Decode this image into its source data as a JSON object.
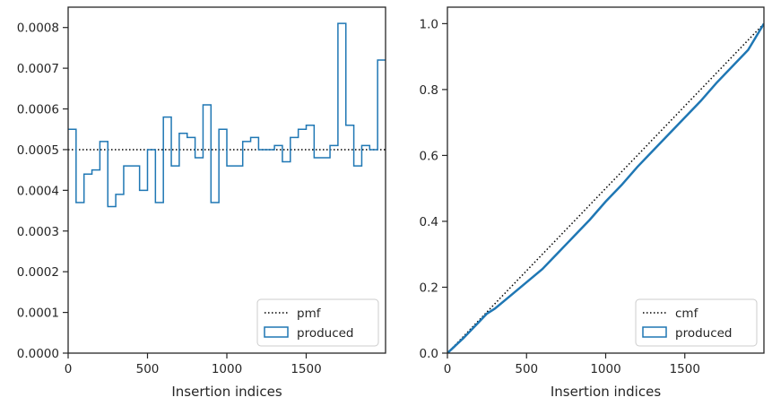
{
  "chart_data": [
    {
      "type": "step",
      "xlabel": "Insertion indices",
      "ylabel": "",
      "xlim": [
        0,
        2000
      ],
      "ylim": [
        0,
        0.00085
      ],
      "xticks": [
        0,
        500,
        1000,
        1500
      ],
      "xtick_labels": [
        "0",
        "500",
        "1000",
        "1500"
      ],
      "yticks": [
        0,
        0.0001,
        0.0002,
        0.0003,
        0.0004,
        0.0005,
        0.0006,
        0.0007,
        0.0008
      ],
      "ytick_labels": [
        "0.0000",
        "0.0001",
        "0.0002",
        "0.0003",
        "0.0004",
        "0.0005",
        "0.0006",
        "0.0007",
        "0.0008"
      ],
      "legend_position": "lower right",
      "legend": [
        "pmf",
        "produced"
      ],
      "series": [
        {
          "name": "pmf",
          "style": "dotted",
          "color": "#000000",
          "x": [
            0,
            2000
          ],
          "y": [
            0.0005,
            0.0005
          ]
        },
        {
          "name": "produced",
          "style": "step",
          "color": "#1f77b4",
          "bin_edges": [
            0,
            50,
            100,
            150,
            200,
            250,
            300,
            350,
            400,
            450,
            500,
            550,
            600,
            650,
            700,
            750,
            800,
            850,
            900,
            950,
            1000,
            1050,
            1100,
            1150,
            1200,
            1250,
            1300,
            1350,
            1400,
            1450,
            1500,
            1550,
            1600,
            1650,
            1700,
            1750,
            1800,
            1850,
            1900,
            1950,
            2000
          ],
          "values": [
            0.00055,
            0.00037,
            0.00044,
            0.00045,
            0.00052,
            0.00036,
            0.00039,
            0.00046,
            0.00046,
            0.0004,
            0.0005,
            0.00037,
            0.00058,
            0.00046,
            0.00054,
            0.00053,
            0.00048,
            0.00061,
            0.00037,
            0.00055,
            0.00046,
            0.00046,
            0.00052,
            0.00053,
            0.0005,
            0.0005,
            0.00051,
            0.00047,
            0.00053,
            0.00055,
            0.00056,
            0.00048,
            0.00048,
            0.00051,
            0.00081,
            0.00056,
            0.00046,
            0.00051,
            0.0005,
            0.00072
          ]
        }
      ]
    },
    {
      "type": "line",
      "xlabel": "Insertion indices",
      "ylabel": "",
      "xlim": [
        0,
        2000
      ],
      "ylim": [
        0,
        1.05
      ],
      "xticks": [
        0,
        500,
        1000,
        1500
      ],
      "xtick_labels": [
        "0",
        "500",
        "1000",
        "1500"
      ],
      "yticks": [
        0,
        0.2,
        0.4,
        0.6,
        0.8,
        1.0
      ],
      "ytick_labels": [
        "0.0",
        "0.2",
        "0.4",
        "0.6",
        "0.8",
        "1.0"
      ],
      "legend_position": "lower right",
      "legend": [
        "cmf",
        "produced"
      ],
      "series": [
        {
          "name": "cmf",
          "style": "dotted",
          "color": "#000000",
          "x": [
            0,
            2000
          ],
          "y": [
            0,
            1.0
          ]
        },
        {
          "name": "produced",
          "style": "line",
          "color": "#1f77b4",
          "x": [
            0,
            100,
            200,
            250,
            300,
            400,
            500,
            600,
            700,
            800,
            900,
            1000,
            1100,
            1200,
            1300,
            1400,
            1500,
            1600,
            1700,
            1800,
            1900,
            2000
          ],
          "y": [
            0,
            0.045,
            0.095,
            0.12,
            0.135,
            0.175,
            0.215,
            0.255,
            0.305,
            0.355,
            0.405,
            0.46,
            0.51,
            0.565,
            0.615,
            0.665,
            0.715,
            0.765,
            0.82,
            0.87,
            0.92,
            1.0
          ]
        }
      ]
    }
  ]
}
